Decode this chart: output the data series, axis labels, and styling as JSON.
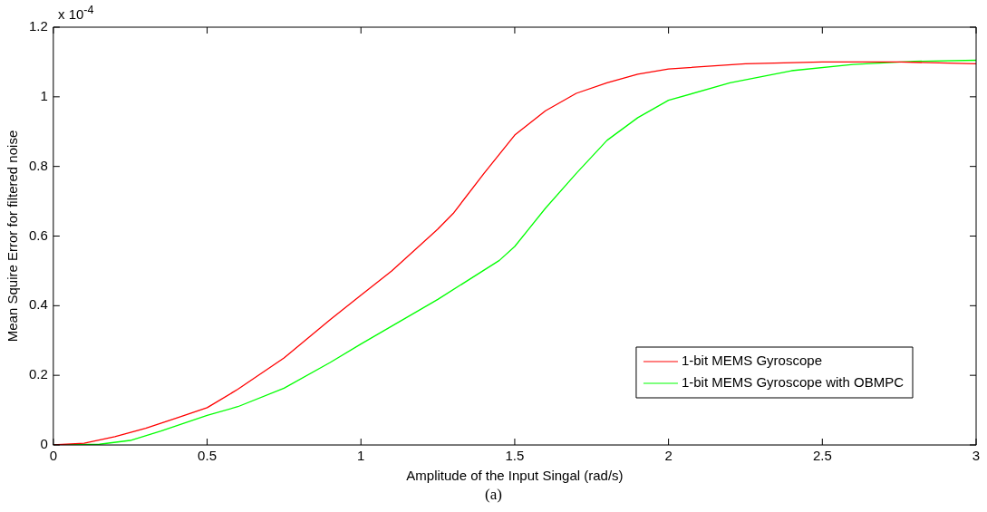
{
  "chart_data": {
    "type": "line",
    "xlabel": "Amplitude of the Input Singal (rad/s)",
    "ylabel": "Mean Squire Error for filtered noise",
    "annotations": [
      "x 10$^{-4}$",
      "(a)"
    ],
    "xlim": [
      0,
      3
    ],
    "xticks": [
      0,
      0.5,
      1,
      1.5,
      2,
      2.5,
      3
    ],
    "ylim": [
      0,
      1.2
    ],
    "yticks": [
      0,
      0.2,
      0.4,
      0.6,
      0.8,
      1,
      1.2
    ],
    "legend": "bottom right",
    "marker": "none",
    "line_style": "solid",
    "series": [
      {
        "name": "1-bit MEMS Gyroscope",
        "color": "#ff0000",
        "x": [
          0,
          0.1,
          0.2,
          0.3,
          0.4,
          0.5,
          0.6,
          0.75,
          0.9,
          1.0,
          1.1,
          1.25,
          1.3,
          1.4,
          1.5,
          1.6,
          1.7,
          1.8,
          1.9,
          2.0,
          2.25,
          2.5,
          2.75,
          3.0
        ],
        "values": [
          0,
          0.005,
          0.024,
          0.048,
          0.077,
          0.107,
          0.16,
          0.25,
          0.36,
          0.43,
          0.5,
          0.62,
          0.665,
          0.78,
          0.89,
          0.96,
          1.01,
          1.04,
          1.065,
          1.08,
          1.095,
          1.1,
          1.1,
          1.095
        ]
      },
      {
        "name": "1-bit MEMS Gyroscope with OBMPC",
        "color": "#00ff00",
        "x": [
          0,
          0.15,
          0.25,
          0.35,
          0.5,
          0.6,
          0.75,
          0.9,
          1.0,
          1.25,
          1.45,
          1.5,
          1.6,
          1.7,
          1.8,
          1.9,
          2.0,
          2.2,
          2.4,
          2.6,
          2.8,
          3.0
        ],
        "values": [
          0,
          0.002,
          0.013,
          0.04,
          0.085,
          0.11,
          0.163,
          0.237,
          0.29,
          0.418,
          0.53,
          0.57,
          0.68,
          0.78,
          0.875,
          0.94,
          0.99,
          1.04,
          1.075,
          1.093,
          1.102,
          1.105
        ]
      }
    ]
  }
}
